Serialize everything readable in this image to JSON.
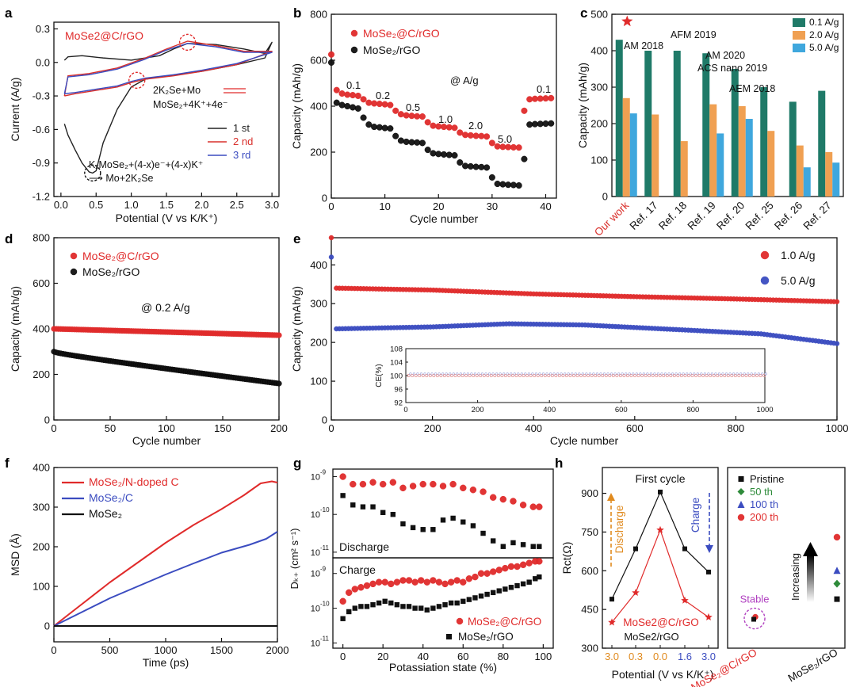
{
  "figure": {
    "panel_letters": [
      "a",
      "b",
      "c",
      "d",
      "e",
      "f",
      "g",
      "h"
    ]
  },
  "chart_data": [
    {
      "id": "a",
      "type": "line",
      "title": "MoSe2@C/rGO",
      "xlabel": "Potential (V vs K/K⁺)",
      "ylabel": "Current (A/g)",
      "xlim": [
        -0.1,
        3.1
      ],
      "ylim": [
        -1.2,
        0.36
      ],
      "xticks": [
        0.0,
        0.5,
        1.0,
        1.5,
        2.0,
        2.5,
        3.0
      ],
      "xtick_labels": [
        "0.0",
        "0.5",
        "1.0",
        "1.5",
        "2.0",
        "2.5",
        "3.0"
      ],
      "yticks": [
        0.3,
        0.0,
        -0.3,
        -0.6,
        -0.9,
        -1.2
      ],
      "ytick_labels": [
        "0.3",
        "0.0",
        "-0.3",
        "-0.6",
        "-0.9",
        "-1.2"
      ],
      "legend": [
        "1 st",
        "2 nd",
        "3 rd"
      ],
      "colors": [
        "#222222",
        "#d9302c",
        "#3b4cc0"
      ],
      "annotations": [
        "2K₂Se+Mo",
        "MoSe₂+4K⁺+4e⁻",
        "KₓMoSe₂+(4-x)e⁻+(4-x)K⁺",
        "⟶ Mo+2K₂Se"
      ],
      "series": [
        {
          "name": "1 st",
          "x": [
            0.05,
            0.1,
            0.2,
            0.3,
            0.4,
            0.45,
            0.5,
            0.6,
            0.8,
            1.0,
            1.2,
            1.5,
            2.0,
            2.5,
            2.9,
            3.0,
            2.9,
            2.6,
            2.2,
            1.8,
            1.6,
            1.4,
            1.0,
            0.6,
            0.3,
            0.1,
            0.05
          ],
          "y": [
            -0.55,
            -0.65,
            -0.78,
            -0.9,
            -0.98,
            -0.99,
            -0.97,
            -0.72,
            -0.42,
            -0.22,
            -0.15,
            -0.12,
            -0.08,
            -0.02,
            0.04,
            0.18,
            0.08,
            0.12,
            0.16,
            0.17,
            0.12,
            0.06,
            0.02,
            0.04,
            0.06,
            0.05,
            0.02
          ]
        },
        {
          "name": "2 nd",
          "x": [
            0.05,
            0.2,
            0.5,
            0.8,
            1.0,
            1.2,
            1.6,
            2.0,
            2.5,
            3.0,
            2.6,
            2.2,
            1.8,
            1.5,
            1.2,
            0.8,
            0.4,
            0.1,
            0.05
          ],
          "y": [
            -0.3,
            -0.28,
            -0.25,
            -0.22,
            -0.18,
            -0.15,
            -0.12,
            -0.08,
            -0.02,
            0.1,
            0.1,
            0.15,
            0.19,
            0.12,
            0.04,
            -0.05,
            -0.1,
            -0.12,
            -0.3
          ]
        },
        {
          "name": "3 rd",
          "x": [
            0.05,
            0.2,
            0.5,
            0.8,
            1.0,
            1.2,
            1.6,
            2.0,
            2.5,
            3.0,
            2.6,
            2.2,
            1.8,
            1.5,
            1.2,
            0.8,
            0.4,
            0.1,
            0.05
          ],
          "y": [
            -0.28,
            -0.27,
            -0.24,
            -0.21,
            -0.17,
            -0.14,
            -0.11,
            -0.07,
            -0.01,
            0.09,
            0.09,
            0.14,
            0.17,
            0.11,
            0.03,
            -0.06,
            -0.11,
            -0.13,
            -0.28
          ]
        }
      ]
    },
    {
      "id": "b",
      "type": "scatter",
      "xlabel": "Cycle number",
      "ylabel": "Capacity (mAh/g)",
      "xlim": [
        0,
        42
      ],
      "ylim": [
        0,
        800
      ],
      "xticks": [
        0,
        10,
        20,
        30,
        40
      ],
      "yticks": [
        0,
        200,
        400,
        600,
        800
      ],
      "legend": [
        "MoSe₂@C/rGO",
        "MoSe₂/rGO"
      ],
      "rate_labels": [
        "0.1",
        "0.2",
        "0.5",
        "1.0",
        "2.0",
        "5.0",
        "0.1"
      ],
      "rate_unit": "@ A/g",
      "series": [
        {
          "name": "MoSe2@C/rGO",
          "color": "#e02b2b",
          "x": [
            0,
            1,
            2,
            3,
            4,
            5,
            6,
            7,
            8,
            9,
            10,
            11,
            12,
            13,
            14,
            15,
            16,
            17,
            18,
            19,
            20,
            21,
            22,
            23,
            24,
            25,
            26,
            27,
            28,
            29,
            30,
            31,
            32,
            33,
            34,
            35,
            36,
            37,
            38,
            39,
            40,
            41
          ],
          "y": [
            625,
            470,
            455,
            450,
            448,
            445,
            430,
            415,
            412,
            410,
            408,
            405,
            380,
            365,
            360,
            358,
            356,
            355,
            330,
            315,
            312,
            310,
            308,
            306,
            285,
            275,
            273,
            271,
            270,
            268,
            240,
            225,
            223,
            222,
            221,
            220,
            380,
            430,
            432,
            433,
            434,
            435
          ]
        },
        {
          "name": "MoSe2/rGO",
          "color": "#111111",
          "x": [
            0,
            1,
            2,
            3,
            4,
            5,
            6,
            7,
            8,
            9,
            10,
            11,
            12,
            13,
            14,
            15,
            16,
            17,
            18,
            19,
            20,
            21,
            22,
            23,
            24,
            25,
            26,
            27,
            28,
            29,
            30,
            31,
            32,
            33,
            34,
            35,
            36,
            37,
            38,
            39,
            40,
            41
          ],
          "y": [
            590,
            415,
            405,
            400,
            395,
            390,
            350,
            320,
            310,
            308,
            305,
            303,
            270,
            250,
            245,
            243,
            242,
            240,
            210,
            195,
            192,
            190,
            188,
            186,
            155,
            140,
            138,
            136,
            135,
            133,
            90,
            62,
            60,
            58,
            57,
            55,
            170,
            320,
            322,
            323,
            324,
            325
          ]
        }
      ]
    },
    {
      "id": "c",
      "type": "bar",
      "ylabel": "Capacity (mAh/g)",
      "ylim": [
        0,
        500
      ],
      "yticks": [
        0,
        100,
        200,
        300,
        400,
        500
      ],
      "categories": [
        "Our work",
        "Ref. 17",
        "Ref. 18",
        "Ref. 19",
        "Ref. 20",
        "Ref. 25",
        "Ref. 26",
        "Ref. 27"
      ],
      "ref_labels": [
        "AM 2018",
        "AFM 2019",
        "AM 2020",
        "ACS nano 2019",
        "AEM 2018"
      ],
      "series": [
        {
          "name": "0.1 A/g",
          "color": "#1f7a68",
          "values": [
            430,
            400,
            400,
            393,
            350,
            300,
            260,
            290
          ]
        },
        {
          "name": "2.0 A/g",
          "color": "#f0a052",
          "values": [
            270,
            225,
            152,
            253,
            248,
            180,
            140,
            122
          ]
        },
        {
          "name": "5.0 A/g",
          "color": "#3fa7dd",
          "values": [
            228,
            null,
            null,
            173,
            213,
            null,
            80,
            93
          ]
        }
      ]
    },
    {
      "id": "d",
      "type": "scatter",
      "xlabel": "Cycle number",
      "ylabel": "Capacity (mAh/g)",
      "xlim": [
        0,
        200
      ],
      "ylim": [
        0,
        800
      ],
      "xticks": [
        0,
        50,
        100,
        150,
        200
      ],
      "yticks": [
        0,
        200,
        400,
        600,
        800
      ],
      "rate_unit": "@ 0.2 A/g",
      "legend": [
        "MoSe₂@C/rGO",
        "MoSe₂/rGO"
      ],
      "series": [
        {
          "name": "MoSe2@C/rGO",
          "color": "#e02b2b",
          "start": 400,
          "end": 372,
          "n": 100
        },
        {
          "name": "MoSe2/rGO",
          "color": "#111111",
          "start": 300,
          "end": 160,
          "n": 100
        }
      ]
    },
    {
      "id": "e",
      "type": "scatter",
      "xlabel": "Cycle number",
      "ylabel": "Capacity (mAh/g)",
      "xlim": [
        0,
        1000
      ],
      "ylim": [
        0,
        470
      ],
      "xticks": [
        0,
        200,
        400,
        600,
        800,
        1000
      ],
      "yticks": [
        0,
        100,
        200,
        300,
        400
      ],
      "legend": [
        "1.0 A/g",
        "5.0 A/g"
      ],
      "series": [
        {
          "name": "1.0 A/g",
          "color": "#e02b2b",
          "points": [
            [
              0,
              470
            ],
            [
              10,
              340
            ],
            [
              200,
              335
            ],
            [
              400,
              325
            ],
            [
              600,
              318
            ],
            [
              800,
              312
            ],
            [
              1000,
              305
            ]
          ]
        },
        {
          "name": "5.0 A/g",
          "color": "#3b4cc0",
          "points": [
            [
              0,
              420
            ],
            [
              10,
              235
            ],
            [
              200,
              240
            ],
            [
              350,
              248
            ],
            [
              500,
              245
            ],
            [
              700,
              232
            ],
            [
              850,
              222
            ],
            [
              1000,
              197
            ]
          ]
        }
      ],
      "inset": {
        "ylabel": "CE(%)",
        "ylim": [
          92,
          108
        ],
        "yticks": [
          92,
          96,
          100,
          104,
          108
        ],
        "xticks": [
          0,
          200,
          400,
          600,
          800,
          1000
        ],
        "value": 100
      }
    },
    {
      "id": "f",
      "type": "line",
      "xlabel": "Time (ps)",
      "ylabel": "MSD (Å)",
      "xlim": [
        0,
        2000
      ],
      "ylim": [
        -40,
        400
      ],
      "xticks": [
        0,
        500,
        1000,
        1500,
        2000
      ],
      "yticks": [
        0,
        100,
        200,
        300,
        400
      ],
      "legend": [
        "MoSe₂/N-doped C",
        "MoSe₂/C",
        "MoSe₂"
      ],
      "series": [
        {
          "name": "MoSe2/N-doped C",
          "color": "#e02b2b",
          "x": [
            0,
            250,
            500,
            750,
            1000,
            1250,
            1500,
            1700,
            1850,
            1950,
            2000
          ],
          "y": [
            0,
            55,
            110,
            160,
            210,
            255,
            295,
            330,
            360,
            365,
            362
          ]
        },
        {
          "name": "MoSe2/C",
          "color": "#3b4cc0",
          "x": [
            0,
            250,
            500,
            750,
            1000,
            1250,
            1500,
            1750,
            1900,
            2000
          ],
          "y": [
            0,
            35,
            70,
            100,
            130,
            158,
            185,
            205,
            220,
            238
          ]
        },
        {
          "name": "MoSe2",
          "color": "#111111",
          "x": [
            0,
            2000
          ],
          "y": [
            0,
            0
          ]
        }
      ]
    },
    {
      "id": "g",
      "type": "scatter",
      "xlabel": "Potassiation state (%)",
      "ylabel": "Dₖ₊ (cm² s⁻¹)",
      "xlim": [
        -5,
        105
      ],
      "xticks": [
        0,
        20,
        40,
        60,
        80,
        100
      ],
      "top_label": "Discharge",
      "bottom_label": "Charge",
      "legend": [
        "MoSe₂@C/rGO",
        "MoSe₂/rGO"
      ],
      "discharge": {
        "x": [
          0,
          5,
          10,
          15,
          20,
          25,
          30,
          35,
          40,
          45,
          50,
          55,
          60,
          65,
          70,
          75,
          80,
          85,
          90,
          95,
          98
        ],
        "red_log": [
          -9.0,
          -9.2,
          -9.2,
          -9.15,
          -9.2,
          -9.15,
          -9.3,
          -9.25,
          -9.2,
          -9.2,
          -9.25,
          -9.2,
          -9.3,
          -9.35,
          -9.4,
          -9.55,
          -9.6,
          -9.65,
          -9.75,
          -9.8,
          -9.8
        ],
        "black_log": [
          -9.5,
          -9.75,
          -9.8,
          -9.8,
          -9.95,
          -10.0,
          -10.25,
          -10.35,
          -10.4,
          -10.4,
          -10.15,
          -10.1,
          -10.2,
          -10.3,
          -10.5,
          -10.7,
          -10.85,
          -10.75,
          -10.8,
          -10.85,
          -10.85
        ]
      },
      "charge": {
        "x": [
          0,
          3,
          6,
          9,
          12,
          15,
          18,
          21,
          24,
          27,
          30,
          33,
          36,
          39,
          42,
          45,
          48,
          51,
          54,
          57,
          60,
          63,
          66,
          69,
          72,
          75,
          78,
          81,
          84,
          87,
          90,
          93,
          96,
          98
        ],
        "red_log": [
          -9.8,
          -9.55,
          -9.45,
          -9.4,
          -9.35,
          -9.3,
          -9.25,
          -9.25,
          -9.3,
          -9.25,
          -9.2,
          -9.2,
          -9.25,
          -9.2,
          -9.25,
          -9.2,
          -9.25,
          -9.3,
          -9.25,
          -9.2,
          -9.25,
          -9.15,
          -9.1,
          -9.0,
          -9.0,
          -8.95,
          -8.9,
          -8.85,
          -8.8,
          -8.8,
          -8.75,
          -8.7,
          -8.65,
          -8.65
        ],
        "black_log": [
          -10.3,
          -10.1,
          -10.0,
          -9.95,
          -9.95,
          -9.9,
          -9.85,
          -9.8,
          -9.85,
          -9.9,
          -9.95,
          -9.95,
          -10.0,
          -10.0,
          -10.05,
          -10.0,
          -9.95,
          -9.9,
          -9.85,
          -9.85,
          -9.8,
          -9.75,
          -9.7,
          -9.65,
          -9.6,
          -9.55,
          -9.5,
          -9.45,
          -9.4,
          -9.35,
          -9.3,
          -9.25,
          -9.15,
          -9.1
        ]
      },
      "ytick_exponents": [
        -9,
        -10,
        -11
      ]
    },
    {
      "id": "h",
      "type": "line",
      "title": "First cycle",
      "ylabel": "Rct(Ω)",
      "xlabel": "Potential (V vs K/K⁺)",
      "ylim": [
        300,
        1000
      ],
      "yticks": [
        300,
        450,
        600,
        750,
        900
      ],
      "categories": [
        "3.0",
        "0.3",
        "0.0",
        "1.6",
        "3.0"
      ],
      "category_colors": [
        "#e08a1e",
        "#e08a1e",
        "#e08a1e",
        "#3b4cc0",
        "#3b4cc0"
      ],
      "discharge_label": "Discharge",
      "charge_label": "Charge",
      "series": [
        {
          "name": "MoSe2/rGO",
          "color": "#111111",
          "values": [
            490,
            685,
            905,
            685,
            595
          ]
        },
        {
          "name": "MoSe2@C/rGO",
          "color": "#e02b2b",
          "values": [
            400,
            515,
            758,
            485,
            420
          ]
        }
      ],
      "right_panel": {
        "legend": [
          "Pristine",
          "50 th",
          "100 th",
          "200 th"
        ],
        "legend_colors": [
          "#111111",
          "#2e8b3a",
          "#3b4cc0",
          "#e02b2b"
        ],
        "categories": [
          "MoSe₂@C/rGO",
          "MoSe₂/rGO"
        ],
        "stable_label": "Stable",
        "increasing_label": "Increasing",
        "series_values_at_rGO": [
          490,
          550,
          600,
          730
        ],
        "series_values_at_C": [
          415,
          415,
          412,
          417
        ]
      }
    }
  ]
}
